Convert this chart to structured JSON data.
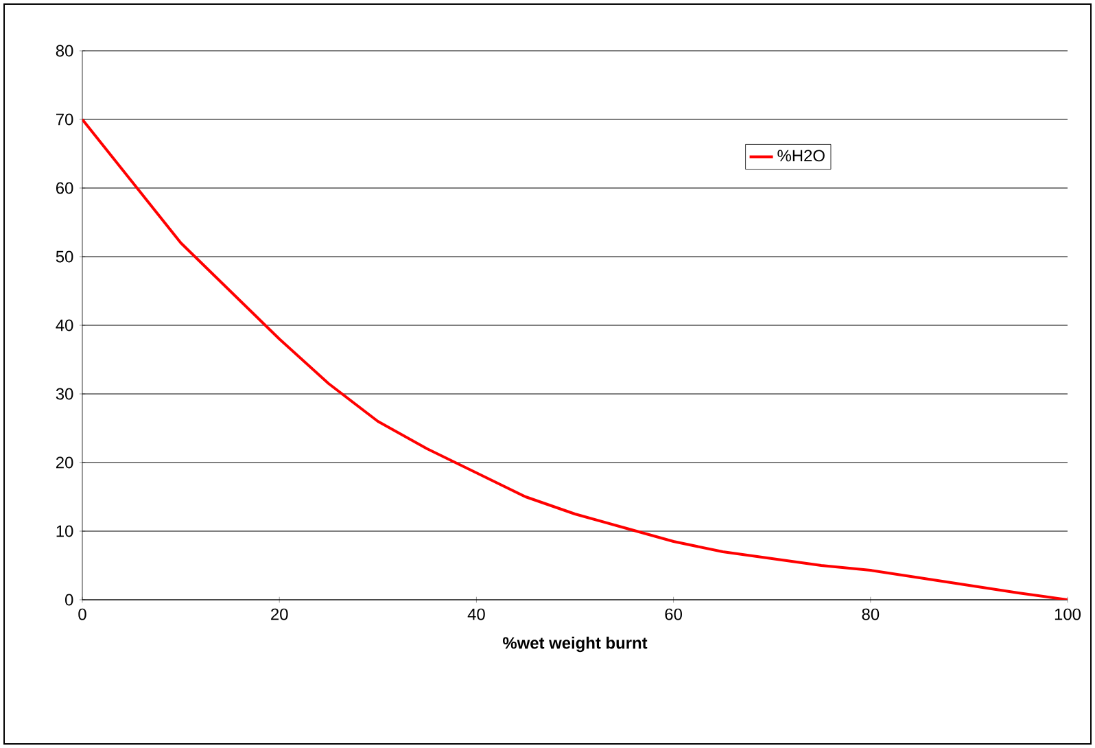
{
  "chart_data": {
    "type": "line",
    "xlabel": "%wet weight burnt",
    "x": [
      0,
      5,
      10,
      15,
      20,
      25,
      30,
      35,
      40,
      45,
      50,
      55,
      60,
      65,
      70,
      75,
      80,
      85,
      90,
      95,
      100
    ],
    "series": [
      {
        "name": "%H2O",
        "color": "#ff0000",
        "values": [
          70,
          61,
          52,
          45,
          38,
          31.5,
          26,
          22,
          18.5,
          15,
          12.5,
          10.5,
          8.5,
          7,
          6,
          5,
          4.3,
          3.2,
          2.1,
          1,
          0
        ]
      }
    ],
    "xlim": [
      0,
      100
    ],
    "ylim": [
      0,
      80
    ],
    "xticks": [
      0,
      20,
      40,
      60,
      80,
      100
    ],
    "yticks": [
      0,
      10,
      20,
      30,
      40,
      50,
      60,
      70,
      80
    ],
    "grid": "y",
    "legend": "top right",
    "marker": "none",
    "line_style": "solid"
  }
}
